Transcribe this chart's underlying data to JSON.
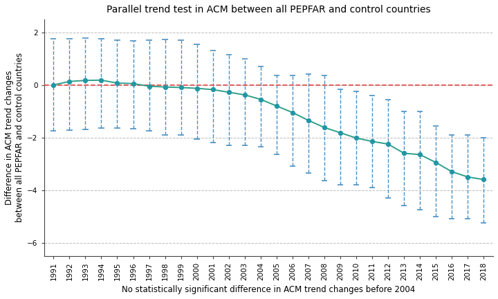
{
  "years": [
    1991,
    1992,
    1993,
    1994,
    1995,
    1996,
    1997,
    1998,
    1999,
    2000,
    2001,
    2002,
    2003,
    2004,
    2005,
    2006,
    2007,
    2008,
    2009,
    2010,
    2011,
    2012,
    2013,
    2014,
    2015,
    2016,
    2017,
    2018
  ],
  "point_estimates": [
    0.0,
    0.13,
    0.17,
    0.18,
    0.07,
    0.05,
    -0.05,
    -0.08,
    -0.1,
    -0.13,
    -0.18,
    -0.28,
    -0.38,
    -0.55,
    -0.8,
    -1.05,
    -1.35,
    -1.62,
    -1.82,
    -2.02,
    -2.15,
    -2.25,
    -2.6,
    -2.65,
    -2.95,
    -3.3,
    -3.5,
    -3.6
  ],
  "ci_upper": [
    1.75,
    1.75,
    1.78,
    1.75,
    1.7,
    1.68,
    1.7,
    1.72,
    1.7,
    1.55,
    1.3,
    1.15,
    1.0,
    0.7,
    0.35,
    0.35,
    0.42,
    0.35,
    -0.18,
    -0.25,
    -0.4,
    -0.55,
    -1.0,
    -1.0,
    -1.55,
    -1.9,
    -1.9,
    -2.0
  ],
  "ci_lower": [
    -1.75,
    -1.72,
    -1.7,
    -1.65,
    -1.65,
    -1.68,
    -1.75,
    -1.9,
    -1.9,
    -2.05,
    -2.2,
    -2.3,
    -2.3,
    -2.35,
    -2.65,
    -3.1,
    -3.35,
    -3.65,
    -3.8,
    -3.8,
    -3.9,
    -4.3,
    -4.6,
    -4.75,
    -5.0,
    -5.1,
    -5.1,
    -5.25
  ],
  "line_color": "#2ca089",
  "marker_color": "#2196a6",
  "ci_color": "#4a90c4",
  "ref_line_color": "#e05050",
  "title": "Parallel trend test in ACM between all PEPFAR and control countries",
  "ylabel": "Difference in ACM trend changes\nbetween all PEPFAR and control countries",
  "xlabel": "No statistically significant difference in ACM trend changes before 2004",
  "ylim": [
    -6.5,
    2.5
  ],
  "yticks": [
    -6,
    -4,
    -2,
    0,
    2
  ],
  "grid_color": "#bbbbbb",
  "spine_color": "#444444",
  "background_color": "#ffffff",
  "title_fontsize": 10,
  "label_fontsize": 8.5,
  "tick_fontsize": 7.5
}
